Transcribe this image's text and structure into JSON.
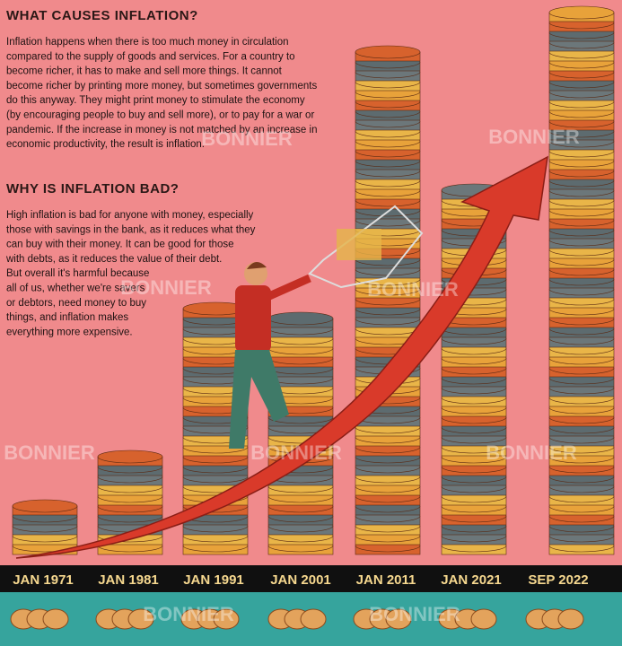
{
  "section1": {
    "heading": "WHAT CAUSES INFLATION?",
    "lines": [
      "Inflation happens when there is too much money in circulation",
      "compared to the supply of goods and services. For a country to",
      "become richer, it has to make and sell more things. It cannot",
      "become richer by printing more money, but sometimes governments",
      "do this anyway. They might print money to stimulate the economy",
      "(by encouraging people to buy and sell more), or to pay for a war or",
      "pandemic. If the increase in money is not matched by an increase in",
      "economic productivity, the result is inflation."
    ]
  },
  "section2": {
    "heading": "WHY IS INFLATION BAD?",
    "lines": [
      "High inflation is bad for anyone with money, especially",
      "those with savings in the bank, as it reduces what they",
      "can buy with their money. It can be good for those",
      "with debts, as it reduces the value of their debt.",
      "But overall it's harmful because",
      "all of us, whether we're savers",
      "or debtors, need money to buy",
      "things, and inflation makes",
      "everything more expensive."
    ]
  },
  "timeline": [
    "JAN 1971",
    "JAN 1981",
    "JAN 1991",
    "JAN 2001",
    "JAN 2011",
    "JAN 2021",
    "SEP 2022"
  ],
  "watermark": "BONNIER"
}
